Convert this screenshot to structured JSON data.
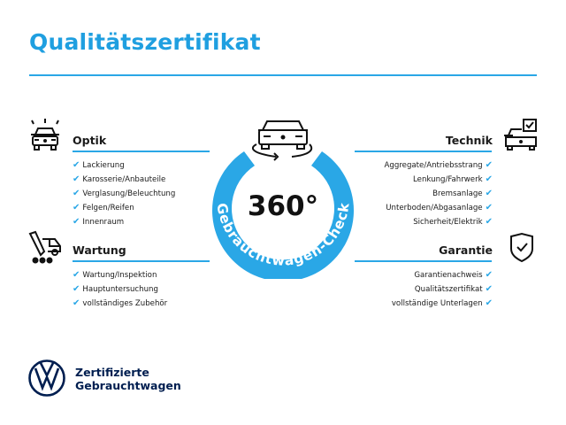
{
  "title": "Qualitätszertifikat",
  "colors": {
    "accent": "#2aa7e6",
    "brand_navy": "#001e50"
  },
  "center": {
    "big_text": "360°",
    "ring_text": "Gebrauchtwagen-Check",
    "icon": "car-rotate-icon"
  },
  "sections": {
    "optik": {
      "title": "Optik",
      "icon": "car-lights-icon",
      "items": [
        "Lackierung",
        "Karosserie/Anbauteile",
        "Verglasung/Beleuchtung",
        "Felgen/Reifen",
        "Innenraum"
      ]
    },
    "wartung": {
      "title": "Wartung",
      "icon": "service-car-icon",
      "items": [
        "Wartung/Inspektion",
        "Hauptuntersuchung",
        "vollständiges Zubehör"
      ]
    },
    "technik": {
      "title": "Technik",
      "icon": "car-checkbox-icon",
      "items": [
        "Aggregate/Antriebsstrang",
        "Lenkung/Fahrwerk",
        "Bremsanlage",
        "Unterboden/Abgasanlage",
        "Sicherheit/Elektrik"
      ]
    },
    "garantie": {
      "title": "Garantie",
      "icon": "shield-check-icon",
      "items": [
        "Garantienachweis",
        "Qualitätszertifikat",
        "vollständige Unterlagen"
      ]
    }
  },
  "check_glyph": "✔",
  "footer": {
    "logo": "VW",
    "line1": "Zertifizierte",
    "line2": "Gebrauchtwagen"
  }
}
